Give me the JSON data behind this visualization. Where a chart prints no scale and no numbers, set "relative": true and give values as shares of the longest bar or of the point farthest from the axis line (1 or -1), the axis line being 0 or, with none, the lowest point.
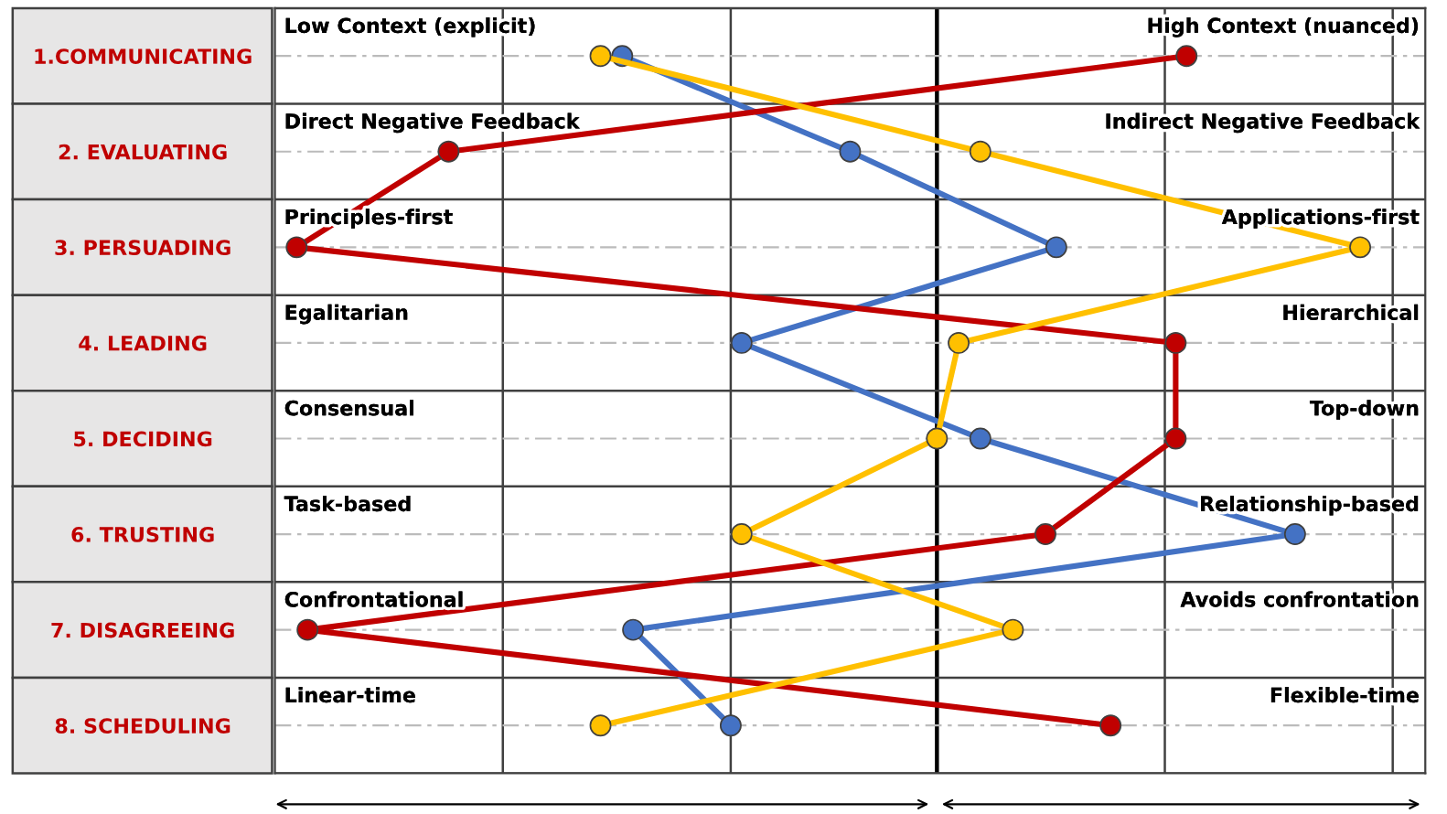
{
  "chart_data": {
    "type": "line",
    "orientation": "horizontal",
    "relative": true,
    "categories": [
      "1.COMMUNICATING",
      "2. EVALUATING",
      "3. PERSUADING",
      "4. LEADING",
      "5. DECIDING",
      "6. TRUSTING",
      "7. DISAGREEING",
      "8. SCHEDULING"
    ],
    "series": [
      {
        "color": "#4472c4",
        "values": [
          0.32,
          0.53,
          0.72,
          0.43,
          0.65,
          0.94,
          0.33,
          0.42
        ]
      },
      {
        "color": "#c00000",
        "values": [
          0.84,
          0.16,
          0.02,
          0.83,
          0.83,
          0.71,
          0.03,
          0.77
        ]
      },
      {
        "color": "#ffc000",
        "values": [
          0.3,
          0.65,
          1.0,
          0.63,
          0.61,
          0.43,
          0.68,
          0.3
        ]
      }
    ],
    "marker": "circle",
    "line_style": "solid",
    "grid": "y",
    "legend": false,
    "ref_lines": [
      {
        "axis": "x",
        "value": 0.21,
        "label": null,
        "color": "#404040"
      },
      {
        "axis": "x",
        "value": 0.42,
        "label": null,
        "color": "#404040"
      },
      {
        "axis": "x",
        "value": 0.61,
        "label": null,
        "color": "#000000"
      },
      {
        "axis": "x",
        "value": 0.82,
        "label": null,
        "color": "#404040"
      },
      {
        "axis": "x",
        "value": 1.03,
        "label": null,
        "color": "#404040"
      }
    ],
    "annotations": [
      "Low Context (explicit)",
      "High Context (nuanced)",
      "Direct Negative Feedback",
      "Indirect Negative Feedback",
      "Principles-first",
      "Applications-first",
      "Egalitarian",
      "Hierarchical",
      "Consensual",
      "Top-down",
      "Task-based",
      "Relationship-based",
      "Confrontational",
      "Avoids confrontation",
      "Linear-time",
      "Flexible-time"
    ]
  }
}
